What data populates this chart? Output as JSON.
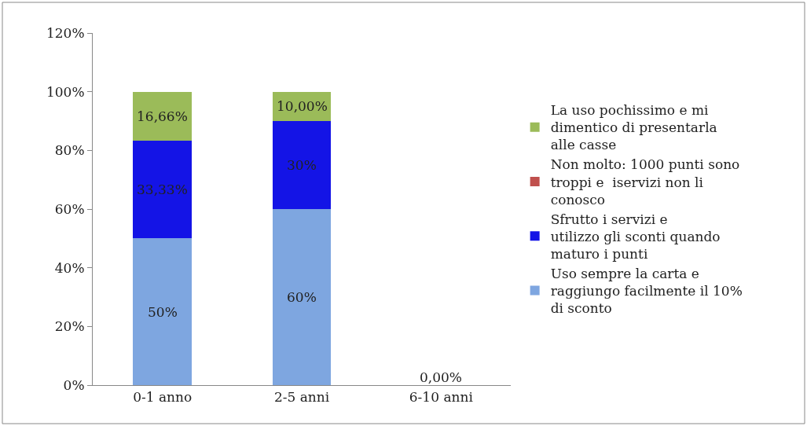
{
  "chart_data": {
    "type": "bar",
    "stacked": true,
    "categories": [
      "0-1 anno",
      "2-5 anni",
      "6-10 anni"
    ],
    "series": [
      {
        "name": "Uso sempre la carta e raggiungo facilmente il 10% di sconto",
        "color": "#7ea6e0",
        "values": [
          50,
          60,
          0
        ],
        "value_labels": [
          "50%",
          "60%",
          "0,00%"
        ]
      },
      {
        "name": "Sfrutto i servizi e utilizzo gli sconti quando maturo i punti",
        "color": "#1414e6",
        "values": [
          33.33,
          30,
          0
        ],
        "value_labels": [
          "33,33%",
          "30%",
          null
        ]
      },
      {
        "name": "Non molto: 1000 punti sono troppi e  iservizi non li conosco",
        "color": "#c0504d",
        "values": [
          0,
          0,
          0
        ],
        "value_labels": [
          null,
          null,
          null
        ]
      },
      {
        "name": "La uso pochissimo e mi dimentico di presentarla alle casse",
        "color": "#9bbb59",
        "values": [
          16.66,
          10,
          0
        ],
        "value_labels": [
          "16,66%",
          "10,00%",
          null
        ]
      }
    ],
    "ylim": [
      0,
      120
    ],
    "yticks": [
      {
        "value": 0,
        "label": "0%"
      },
      {
        "value": 20,
        "label": "20%"
      },
      {
        "value": 40,
        "label": "40%"
      },
      {
        "value": 60,
        "label": "60%"
      },
      {
        "value": 80,
        "label": "80%"
      },
      {
        "value": 100,
        "label": "100%"
      },
      {
        "value": 120,
        "label": "120%"
      }
    ],
    "legend": "right"
  }
}
